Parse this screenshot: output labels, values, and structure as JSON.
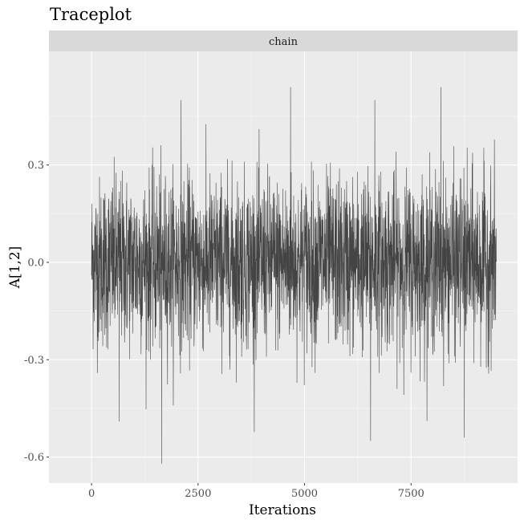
{
  "chart_data": {
    "type": "line",
    "title": "Traceplot",
    "facet_strip": "chain",
    "xlabel": "Iterations",
    "ylabel": "A[1,2]",
    "xlim": [
      -1000,
      10000
    ],
    "ylim": [
      -0.68,
      0.65
    ],
    "x_ticks": [
      0,
      2500,
      5000,
      7500
    ],
    "x_tick_labels": [
      "0",
      "2500",
      "5000",
      "7500"
    ],
    "y_ticks": [
      -0.6,
      -0.3,
      0.0,
      0.3
    ],
    "y_tick_labels": [
      "-0.6",
      "-0.3",
      "0.0",
      "0.3"
    ],
    "grid": true,
    "series": [
      {
        "iterations": [
          0,
          9500
        ],
        "approx_mean": 0.0,
        "approx_sd": 0.13,
        "approx_min": -0.62,
        "approx_max": 0.54,
        "notable_points": [
          {
            "x": 1650,
            "y": -0.62
          },
          {
            "x": 4670,
            "y": 0.54
          },
          {
            "x": 8200,
            "y": 0.54
          },
          {
            "x": 6550,
            "y": -0.55
          },
          {
            "x": 8750,
            "y": -0.54
          },
          {
            "x": 2100,
            "y": 0.5
          },
          {
            "x": 6650,
            "y": 0.5
          },
          {
            "x": 650,
            "y": -0.49
          }
        ]
      }
    ]
  },
  "colors": {
    "panel_bg": "#ebebeb",
    "strip_bg": "#d9d9d9",
    "grid_major": "#ffffff",
    "line": "#444444"
  }
}
